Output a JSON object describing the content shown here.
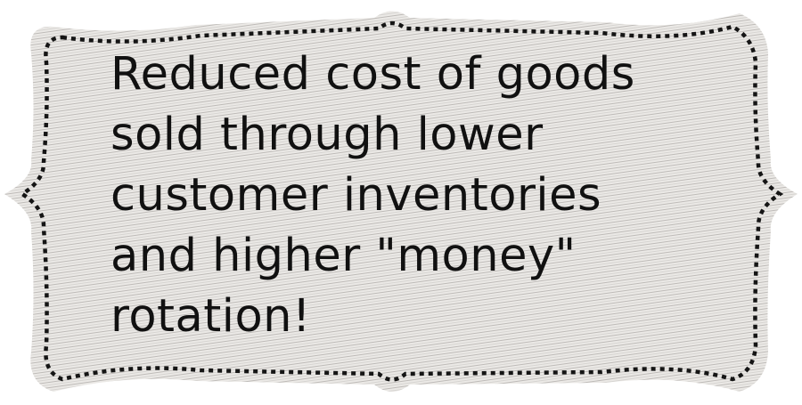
{
  "label": {
    "lines": [
      "Reduced cost of goods",
      "sold through lower",
      "customer inventories",
      "and higher \"money\"",
      "rotation!"
    ]
  },
  "colors": {
    "background": "#ffffff",
    "card_fill": "#e8e6e3",
    "hatch_line": "#9a9794",
    "dotted_border": "#151515",
    "text": "#111111"
  }
}
